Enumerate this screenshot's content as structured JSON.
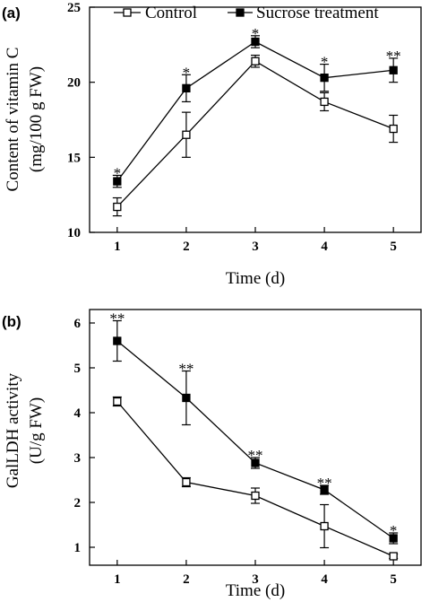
{
  "chart_data": [
    {
      "panel_label": "(a)",
      "type": "line",
      "xlabel": "Time (d)",
      "ylabel_line1": "Content of vitamin C",
      "ylabel_line2": "(mg/100 g FW)",
      "xlim": [
        0.6,
        5.4
      ],
      "ylim": [
        10,
        25
      ],
      "x_ticks": [
        1,
        2,
        3,
        4,
        5
      ],
      "y_ticks": [
        10,
        15,
        20,
        25
      ],
      "legend_position": "top",
      "series": [
        {
          "name": "Control",
          "marker": "open-square",
          "x": [
            1,
            2,
            3,
            4,
            5
          ],
          "y": [
            11.7,
            16.5,
            21.4,
            18.7,
            16.9
          ],
          "err": [
            0.6,
            1.5,
            0.4,
            0.6,
            0.9
          ]
        },
        {
          "name": "Sucrose treatment",
          "marker": "filled-square",
          "x": [
            1,
            2,
            3,
            4,
            5
          ],
          "y": [
            13.4,
            19.6,
            22.7,
            20.3,
            20.8
          ],
          "err": [
            0.4,
            0.9,
            0.4,
            0.9,
            0.8
          ]
        }
      ],
      "significance": [
        "*",
        "*",
        "*",
        "*",
        "**"
      ]
    },
    {
      "panel_label": "(b)",
      "type": "line",
      "xlabel": "Time (d)",
      "ylabel_line1": "GalLDH activity",
      "ylabel_line2": "(U/g FW)",
      "xlim": [
        0.6,
        5.4
      ],
      "ylim": [
        0.6,
        6.3
      ],
      "x_ticks": [
        1,
        2,
        3,
        4,
        5
      ],
      "y_ticks": [
        1,
        2,
        3,
        4,
        5,
        6
      ],
      "legend_position": "none",
      "series": [
        {
          "name": "Control",
          "marker": "open-square",
          "x": [
            1,
            2,
            3,
            4,
            5
          ],
          "y": [
            4.25,
            2.45,
            2.15,
            1.47,
            0.8
          ],
          "err": [
            0.1,
            0.1,
            0.17,
            0.48,
            0.05
          ]
        },
        {
          "name": "Sucrose treatment",
          "marker": "filled-square",
          "x": [
            1,
            2,
            3,
            4,
            5
          ],
          "y": [
            5.6,
            4.33,
            2.88,
            2.28,
            1.2
          ],
          "err": [
            0.45,
            0.6,
            0.12,
            0.1,
            0.12
          ]
        }
      ],
      "significance": [
        "**",
        "**",
        "**",
        "**",
        "*"
      ]
    }
  ]
}
